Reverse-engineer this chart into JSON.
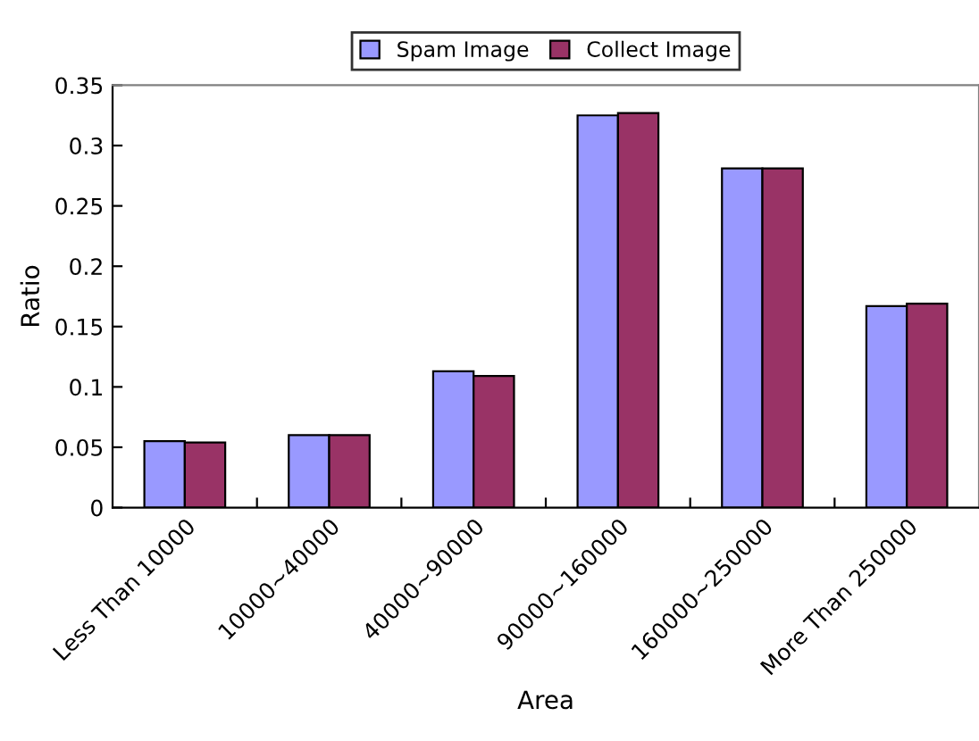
{
  "chart_data": {
    "type": "bar",
    "xlabel": "Area",
    "ylabel": "Ratio",
    "categories": [
      "Less Than 10000",
      "10000~40000",
      "40000~90000",
      "90000~160000",
      "160000~250000",
      "More Than 250000"
    ],
    "series": [
      {
        "name": "Spam Image",
        "color": "#9999ff",
        "values": [
          0.055,
          0.06,
          0.113,
          0.325,
          0.281,
          0.167
        ]
      },
      {
        "name": "Collect Image",
        "color": "#993366",
        "values": [
          0.054,
          0.06,
          0.109,
          0.327,
          0.281,
          0.169
        ]
      }
    ],
    "ylim": [
      0,
      0.35
    ],
    "yticks": [
      0,
      0.05,
      0.1,
      0.15,
      0.2,
      0.25,
      0.3,
      0.35
    ],
    "grid": false,
    "legend": "top"
  }
}
